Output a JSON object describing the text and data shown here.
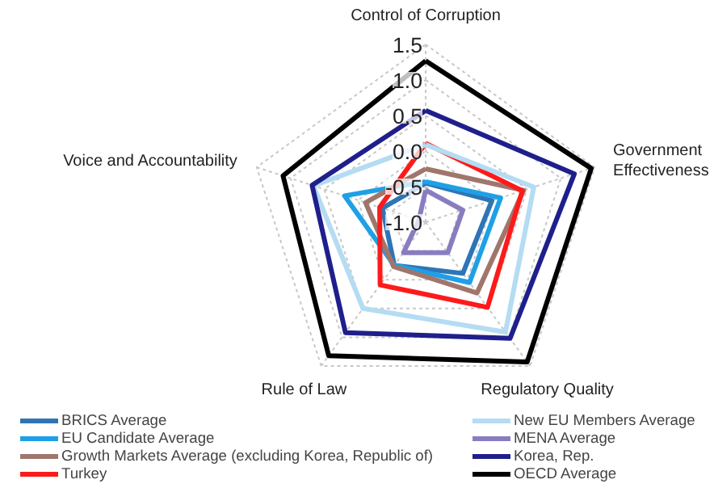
{
  "chart_data": {
    "type": "radar",
    "categories": [
      "Control of Corruption",
      "Government Effectiveness",
      "Regulatory Quality",
      "Rule of Law",
      "Voice and Accountability"
    ],
    "ylim": [
      -1.0,
      1.5
    ],
    "yticks": [
      {
        "value": -1.0,
        "label": "-1.0"
      },
      {
        "value": -0.5,
        "label": "-0.5"
      },
      {
        "value": 0,
        "label": "0.0"
      },
      {
        "value": 0.5,
        "label": "0.5"
      },
      {
        "value": 1.0,
        "label": "1.0"
      },
      {
        "value": 1.5,
        "label": "1.5"
      }
    ],
    "grid": true,
    "legend": "bottom",
    "series": [
      {
        "name": "BRICS Average",
        "color": "#2e75b6",
        "values": [
          -0.45,
          -0.02,
          -0.11,
          -0.25,
          -0.36
        ]
      },
      {
        "name": "EU Candidate Average",
        "color": "#1ea0e6",
        "values": [
          -0.43,
          0.11,
          0.05,
          -0.25,
          0.2
        ]
      },
      {
        "name": "Growth Markets Average (excluding Korea, Republic of)",
        "color": "#a0766c",
        "values": [
          -0.25,
          0.45,
          0.23,
          -0.23,
          -0.11
        ]
      },
      {
        "name": "Turkey",
        "color": "#ff1a1a",
        "values": [
          0.11,
          0.43,
          0.48,
          0.09,
          -0.32
        ]
      },
      {
        "name": "New EU Members Average",
        "color": "#b4dcf2",
        "values": [
          0.09,
          0.6,
          0.91,
          0.5,
          0.66
        ]
      },
      {
        "name": "MENA Average",
        "color": "#8a7cc0",
        "values": [
          -0.55,
          -0.45,
          -0.47,
          -0.47,
          -0.9
        ]
      },
      {
        "name": "Korea, Rep.",
        "color": "#1f1f8c",
        "values": [
          0.57,
          1.2,
          1.02,
          0.92,
          0.68
        ]
      },
      {
        "name": "OECD Average",
        "color": "#000000",
        "values": [
          1.27,
          1.45,
          1.43,
          1.32,
          1.11
        ]
      }
    ]
  }
}
